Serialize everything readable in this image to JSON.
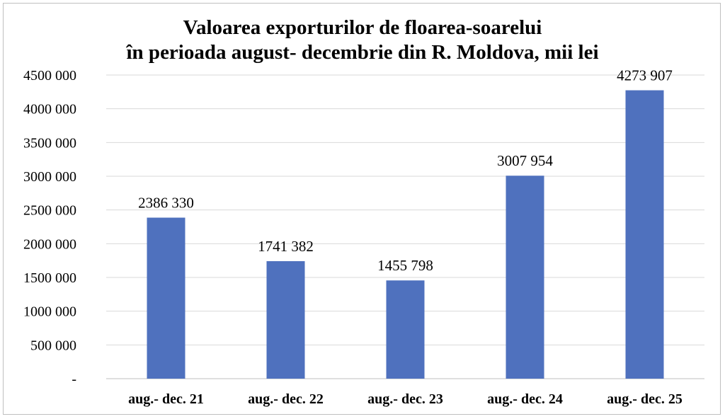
{
  "chart_data": {
    "type": "bar",
    "title_lines": [
      "Valoarea exporturilor de floarea-soarelui",
      "în perioada august- decembrie din R. Moldova, mii lei"
    ],
    "categories": [
      "aug.- dec. 21",
      "aug.- dec. 22",
      "aug.- dec. 23",
      "aug.- dec. 24",
      "aug.- dec. 25"
    ],
    "values": [
      2386330,
      1741382,
      1455798,
      3007954,
      4273907
    ],
    "data_labels": [
      "2386 330",
      "1741 382",
      "1455 798",
      "3007 954",
      "4273 907"
    ],
    "ylim": [
      0,
      4500000
    ],
    "y_ticks": [
      0,
      500000,
      1000000,
      1500000,
      2000000,
      2500000,
      3000000,
      3500000,
      4000000,
      4500000
    ],
    "y_tick_labels": [
      "-",
      "500 000",
      "1000 000",
      "1500 000",
      "2000 000",
      "2500 000",
      "3000 000",
      "3500 000",
      "4000 000",
      "4500 000"
    ],
    "grid": true,
    "legend": "none",
    "bar_color": "#4f71be",
    "grid_color": "#d9d9d9"
  }
}
